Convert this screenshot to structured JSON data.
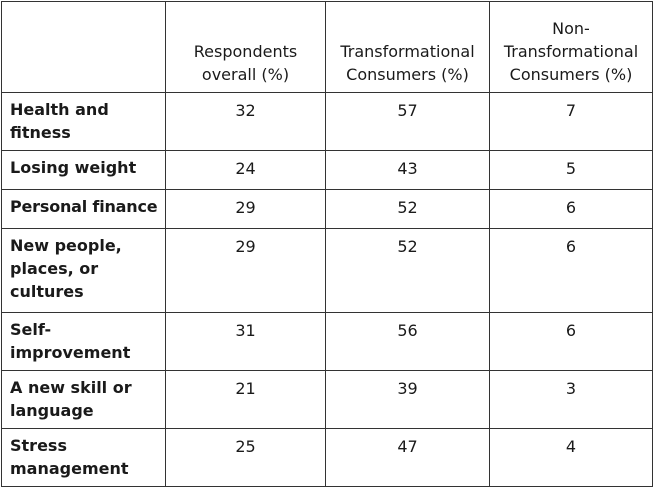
{
  "table": {
    "headers": [
      "",
      "Respondents overall (%)",
      "Transformational Consumers (%)",
      "Non-Transformational Consumers (%)"
    ],
    "rows": [
      {
        "label": "Health and fitness",
        "values": [
          "32",
          "57",
          "7"
        ]
      },
      {
        "label": "Losing weight",
        "values": [
          "24",
          "43",
          "5"
        ]
      },
      {
        "label": "Personal finance",
        "values": [
          "29",
          "52",
          "6"
        ]
      },
      {
        "label": "New people, places, or cultures",
        "values": [
          "29",
          "52",
          "6"
        ]
      },
      {
        "label": "Self-improvement",
        "values": [
          "31",
          "56",
          "6"
        ]
      },
      {
        "label": "A new skill or language",
        "values": [
          "21",
          "39",
          "3"
        ]
      },
      {
        "label": "Stress management",
        "values": [
          "25",
          "47",
          "4"
        ]
      }
    ]
  }
}
